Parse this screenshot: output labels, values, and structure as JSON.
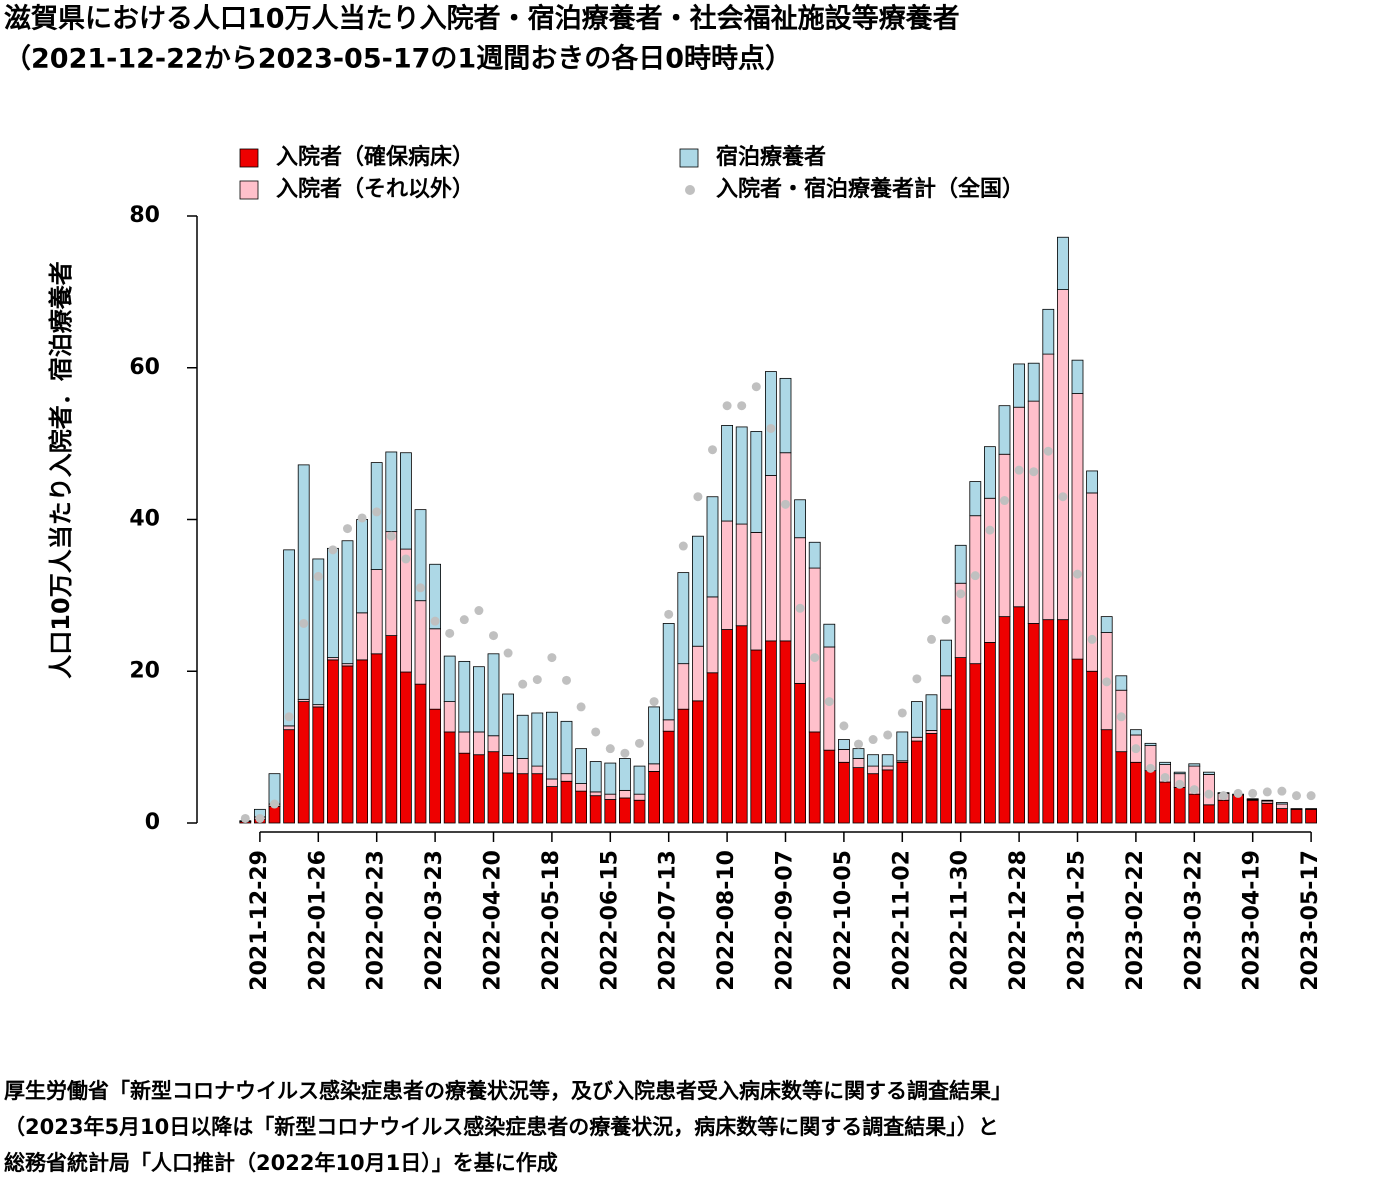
{
  "chart_data": {
    "type": "bar",
    "stacked": true,
    "title": "滋賀県における人口10万人当たり入院者・宿泊療養者・社会福祉施設等療養者",
    "subtitle": "（2021-12-22から2023-05-17の1週間おきの各日0時時点）",
    "ylabel": "人口10万人当たり入院者．宿泊療養者",
    "footnote": [
      "厚生労働省「新型コロナウイルス感染症患者の療養状況等，及び入院患者受入病床数等に関する調査結果」",
      "（2023年5月10日以降は「新型コロナウイルス感染症患者の療養状況，病床数等に関する調査結果」）と",
      "総務省統計局「人口推計（2022年10月1日）」を基に作成"
    ],
    "categories": [
      null,
      "2021-12-29",
      null,
      null,
      null,
      "2022-01-26",
      null,
      null,
      null,
      "2022-02-23",
      null,
      null,
      null,
      "2022-03-23",
      null,
      null,
      null,
      "2022-04-20",
      null,
      null,
      null,
      "2022-05-18",
      null,
      null,
      null,
      "2022-06-15",
      null,
      null,
      null,
      "2022-07-13",
      null,
      null,
      null,
      "2022-08-10",
      null,
      null,
      null,
      "2022-09-07",
      null,
      null,
      null,
      "2022-10-05",
      null,
      null,
      null,
      "2022-11-02",
      null,
      null,
      null,
      "2022-11-30",
      null,
      null,
      null,
      "2022-12-28",
      null,
      null,
      null,
      "2023-01-25",
      null,
      null,
      null,
      "2023-02-22",
      null,
      null,
      null,
      "2023-03-22",
      null,
      null,
      null,
      "2023-04-19",
      null,
      null,
      null,
      "2023-05-17"
    ],
    "series": [
      {
        "name": "入院者（確保病床）",
        "color": "#ee0000",
        "values": [
          0.2,
          0.5,
          2.2,
          12.3,
          16,
          15.3,
          21.5,
          20.7,
          21.5,
          22.3,
          24.7,
          19.9,
          18.3,
          15,
          12,
          9.2,
          9,
          9.4,
          6.6,
          6.5,
          6.5,
          4.8,
          5.5,
          4.2,
          3.6,
          3.1,
          3.3,
          3.0,
          6.8,
          12.1,
          15,
          16.1,
          19.8,
          25.5,
          26,
          22.8,
          24,
          24,
          18.4,
          12,
          9.6,
          8,
          7.3,
          6.5,
          7,
          8,
          10.8,
          11.8,
          15,
          21.8,
          21,
          23.8,
          27.2,
          28.5,
          26.3,
          26.8,
          26.8,
          21.6,
          20,
          12.3,
          9.4,
          8,
          6.9,
          5.4,
          4.7,
          3.8,
          2.4,
          3,
          3.7,
          3,
          2.6,
          1.9,
          1.8,
          1.8
        ]
      },
      {
        "name": "入院者（それ以外）",
        "color": "#ffc0cb",
        "values": [
          0,
          0.3,
          0.3,
          0.5,
          0.3,
          0.3,
          0.3,
          0.3,
          6.2,
          11.1,
          13.7,
          16.2,
          11,
          10.6,
          4,
          2.8,
          3,
          2.1,
          2.3,
          2,
          1,
          1,
          1,
          1,
          0.5,
          0.7,
          1,
          0.8,
          1,
          1.5,
          6,
          7.2,
          10,
          14.3,
          13.4,
          15.5,
          21.8,
          24.8,
          19.2,
          21.6,
          13.6,
          1.7,
          1.2,
          1,
          0.5,
          0.2,
          0.5,
          0.4,
          4.4,
          9.8,
          19.5,
          19,
          21.4,
          26.3,
          29.3,
          35,
          43.5,
          35,
          23.5,
          12.8,
          8.1,
          3.6,
          3.3,
          2.3,
          1.8,
          3.7,
          4,
          0.9,
          0.1,
          0.1,
          0.3,
          0.6,
          0.1,
          0.1
        ]
      },
      {
        "name": "宿泊療養者",
        "color": "#add8e6",
        "values": [
          0.1,
          1.0,
          4.0,
          23.2,
          30.9,
          19.2,
          14.4,
          16.2,
          12.3,
          14.1,
          10.5,
          12.7,
          12,
          8.5,
          6,
          9.3,
          8.6,
          10.8,
          8.1,
          5.7,
          7,
          8.8,
          6.9,
          4.6,
          4.0,
          4.1,
          4.2,
          3.7,
          7.5,
          12.7,
          12,
          14.5,
          13.2,
          12.6,
          12.8,
          13.3,
          13.7,
          9.8,
          5,
          3.4,
          3,
          1.3,
          1.3,
          1.5,
          1.5,
          3.8,
          4.7,
          4.7,
          4.7,
          5,
          4.5,
          6.8,
          6.4,
          5.7,
          5,
          5.9,
          6.9,
          4.4,
          2.9,
          2.1,
          1.9,
          0.7,
          0.3,
          0.3,
          0.2,
          0.3,
          0.3,
          0.1,
          0,
          0.1,
          0.1,
          0.2,
          0,
          0
        ]
      },
      {
        "name": "入院者・宿泊療養者計（全国）",
        "color": "#c0c0c0",
        "type": "scatter",
        "values": [
          0.6,
          0.6,
          2.5,
          14,
          26.3,
          32.5,
          36,
          38.8,
          40.2,
          41,
          37.8,
          34.8,
          31,
          26.6,
          25,
          26.8,
          28,
          24.7,
          22.4,
          18.3,
          18.9,
          21.8,
          18.8,
          15.3,
          12,
          9.8,
          9.2,
          10.5,
          16,
          27.5,
          36.5,
          43,
          49.2,
          55,
          55,
          57.5,
          52,
          42,
          28.3,
          21.8,
          16,
          12.8,
          10.4,
          11,
          11.6,
          14.5,
          19,
          24.2,
          26.8,
          30.2,
          32.6,
          38.6,
          42.5,
          46.5,
          46.3,
          49,
          43,
          32.8,
          24.2,
          18.6,
          14,
          9.8,
          7.2,
          6,
          5.1,
          4.4,
          3.8,
          3.6,
          3.9,
          3.9,
          4.1,
          4.2,
          3.6,
          3.6
        ]
      }
    ],
    "ylim": [
      0,
      80
    ],
    "yticks": [
      0,
      20,
      40,
      60,
      80
    ],
    "grid": false
  }
}
